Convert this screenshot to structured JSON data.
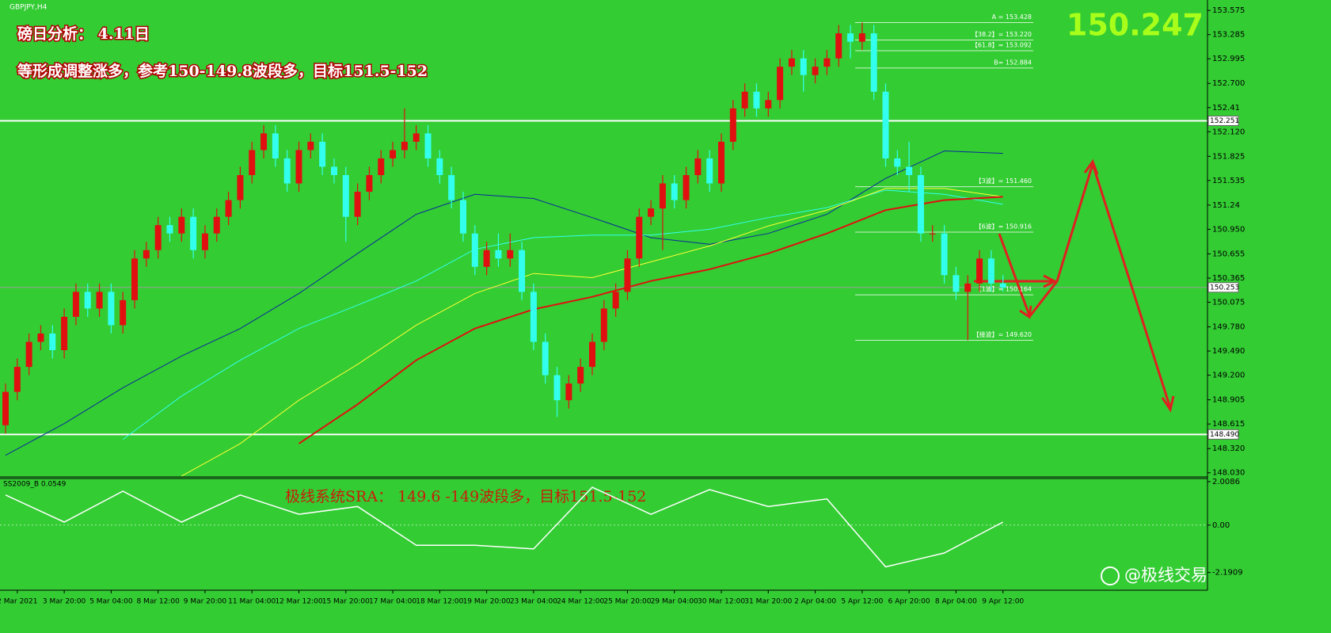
{
  "chart_data": {
    "type": "candlestick",
    "symbol": "GBPJPY,H4",
    "title": "磅日分析：  4.11日",
    "subtitle": "等形成调整涨多，参考150-149.8波段多，目标151.5-152",
    "price": "150.247",
    "indicator_label": "SS2009_B 0.0549",
    "indicator_note": "极线系统SRA：  149.6 -149波段多，目标151.5-152",
    "watermark": "@极线交易",
    "up_color": "#e01010",
    "down_color": "#33ffee",
    "categories": [
      null,
      "2 Mar 2021",
      null,
      null,
      null,
      "3 Mar 20:00",
      null,
      null,
      null,
      "5 Mar 04:00",
      null,
      null,
      null,
      "8 Mar 12:00",
      null,
      null,
      null,
      "9 Mar 20:00",
      null,
      null,
      null,
      "11 Mar 04:00",
      null,
      null,
      null,
      "12 Mar 12:00",
      null,
      null,
      null,
      "15 Mar 20:00",
      null,
      null,
      null,
      "17 Mar 04:00",
      null,
      null,
      null,
      "18 Mar 12:00",
      null,
      null,
      null,
      "19 Mar 20:00",
      null,
      null,
      null,
      "23 Mar 04:00",
      null,
      null,
      null,
      "24 Mar 12:00",
      null,
      null,
      null,
      "25 Mar 20:00",
      null,
      null,
      null,
      "29 Mar 04:00",
      null,
      null,
      null,
      "30 Mar 12:00",
      null,
      null,
      null,
      "31 Mar 20:00",
      null,
      null,
      null,
      "2 Apr 04:00",
      null,
      null,
      null,
      "5 Apr 12:00",
      null,
      null,
      null,
      "6 Apr 20:00",
      null,
      null,
      null,
      "8 Apr 04:00",
      null,
      null,
      null,
      "9 Apr 12:00"
    ],
    "open": [
      148.6,
      149.0,
      149.3,
      149.6,
      149.7,
      149.5,
      149.9,
      150.2,
      150.0,
      150.2,
      149.8,
      150.1,
      150.6,
      150.7,
      151.0,
      150.9,
      151.1,
      150.7,
      150.9,
      151.1,
      151.3,
      151.6,
      151.9,
      152.1,
      151.8,
      151.5,
      151.9,
      152.0,
      151.7,
      151.6,
      151.1,
      151.4,
      151.6,
      151.8,
      151.9,
      152.0,
      152.1,
      151.8,
      151.6,
      151.3,
      150.9,
      150.5,
      150.7,
      150.6,
      150.7,
      150.2,
      149.6,
      149.2,
      148.9,
      149.1,
      149.3,
      149.6,
      150.0,
      150.2,
      150.6,
      151.1,
      151.2,
      151.5,
      151.3,
      151.6,
      151.8,
      151.5,
      152.0,
      152.4,
      152.6,
      152.4,
      152.5,
      152.9,
      153.0,
      152.8,
      152.9,
      153.0,
      153.3,
      153.2,
      153.3,
      152.6,
      151.8,
      151.7,
      151.6,
      150.9,
      150.9,
      150.4,
      150.2,
      150.3,
      150.6,
      150.3
    ],
    "high": [
      149.1,
      149.4,
      149.7,
      149.8,
      149.8,
      150.0,
      150.3,
      150.3,
      150.3,
      150.3,
      150.2,
      150.7,
      150.8,
      151.1,
      151.1,
      151.2,
      151.2,
      151.0,
      151.2,
      151.4,
      151.7,
      152.0,
      152.2,
      152.2,
      151.9,
      152.0,
      152.1,
      152.1,
      151.8,
      151.7,
      151.5,
      151.7,
      151.9,
      152.0,
      152.4,
      152.2,
      152.2,
      151.9,
      151.7,
      151.4,
      151.0,
      150.8,
      150.9,
      150.9,
      150.8,
      150.3,
      149.7,
      149.3,
      149.2,
      149.4,
      149.7,
      150.1,
      150.3,
      150.7,
      151.2,
      151.3,
      151.6,
      151.6,
      151.7,
      151.9,
      151.9,
      152.1,
      152.5,
      152.7,
      152.7,
      152.6,
      153.0,
      153.1,
      153.1,
      153.0,
      153.1,
      153.4,
      153.4,
      153.43,
      153.4,
      152.7,
      151.9,
      152.0,
      151.7,
      151.0,
      151.0,
      150.5,
      150.4,
      150.7,
      150.7,
      150.4
    ],
    "low": [
      148.5,
      148.9,
      149.2,
      149.5,
      149.4,
      149.4,
      149.8,
      149.9,
      149.9,
      149.7,
      149.7,
      150.0,
      150.5,
      150.6,
      150.8,
      150.8,
      150.6,
      150.6,
      150.8,
      151.0,
      151.2,
      151.5,
      151.8,
      151.7,
      151.4,
      151.4,
      151.8,
      151.6,
      151.5,
      150.8,
      151.0,
      151.3,
      151.5,
      151.7,
      151.8,
      151.9,
      151.7,
      151.5,
      151.2,
      150.8,
      150.4,
      150.4,
      150.5,
      150.5,
      150.1,
      149.5,
      149.1,
      148.7,
      148.8,
      149.0,
      149.2,
      149.5,
      149.9,
      150.1,
      150.5,
      151.0,
      150.7,
      151.2,
      151.2,
      151.5,
      151.4,
      151.4,
      151.9,
      152.3,
      152.3,
      152.3,
      152.4,
      152.8,
      152.6,
      152.7,
      152.8,
      152.9,
      153.0,
      153.1,
      152.5,
      151.7,
      151.6,
      151.4,
      150.8,
      150.8,
      150.3,
      150.1,
      149.62,
      150.2,
      150.2,
      150.2
    ],
    "close": [
      149.0,
      149.3,
      149.6,
      149.7,
      149.5,
      149.9,
      150.2,
      150.0,
      150.2,
      149.8,
      150.1,
      150.6,
      150.7,
      151.0,
      150.9,
      151.1,
      150.7,
      150.9,
      151.1,
      151.3,
      151.6,
      151.9,
      152.1,
      151.8,
      151.5,
      151.9,
      152.0,
      151.7,
      151.6,
      151.1,
      151.4,
      151.6,
      151.8,
      151.9,
      152.0,
      152.1,
      151.8,
      151.6,
      151.3,
      150.9,
      150.5,
      150.7,
      150.6,
      150.7,
      150.2,
      149.6,
      149.2,
      148.9,
      149.1,
      149.3,
      149.6,
      150.0,
      150.2,
      150.6,
      151.1,
      151.2,
      151.5,
      151.3,
      151.6,
      151.8,
      151.5,
      152.0,
      152.4,
      152.6,
      152.4,
      152.5,
      152.9,
      153.0,
      152.8,
      152.9,
      153.0,
      153.3,
      153.2,
      153.3,
      152.6,
      151.8,
      151.7,
      151.6,
      150.9,
      150.9,
      150.4,
      150.2,
      150.3,
      150.6,
      150.3,
      150.25
    ],
    "line_x": [
      0,
      5,
      10,
      15,
      20,
      25,
      30,
      35,
      40,
      45,
      50,
      55,
      60,
      65,
      70,
      75,
      80,
      85
    ],
    "lines": [
      {
        "color": "#0a2a9a",
        "values": [
          148.24,
          148.62,
          149.05,
          149.43,
          149.76,
          150.18,
          150.66,
          151.13,
          151.37,
          151.32,
          151.09,
          150.85,
          150.77,
          150.9,
          151.13,
          151.56,
          151.89,
          151.86
        ]
      },
      {
        "color": "#33ffee",
        "values": [
          null,
          null,
          148.43,
          148.95,
          149.38,
          149.76,
          150.04,
          150.33,
          150.71,
          150.85,
          150.88,
          150.88,
          150.95,
          151.09,
          151.21,
          151.42,
          151.37,
          151.25
        ]
      },
      {
        "color": "#ffff33",
        "values": [
          null,
          null,
          null,
          147.99,
          148.38,
          148.9,
          149.33,
          149.8,
          150.18,
          150.42,
          150.37,
          150.56,
          150.75,
          150.99,
          151.18,
          151.44,
          151.44,
          151.34
        ]
      },
      {
        "color": "#e01010",
        "values": [
          null,
          null,
          null,
          null,
          null,
          148.38,
          148.85,
          149.38,
          149.76,
          149.99,
          150.14,
          150.33,
          150.47,
          150.66,
          150.9,
          151.18,
          151.3,
          151.34
        ]
      }
    ],
    "ylim": [
      147.98,
      153.7
    ],
    "yticks": [
      153.575,
      153.285,
      152.995,
      {
        "value": 152.7,
        "label": "152.700"
      },
      152.41,
      {
        "value": 152.12,
        "label": "152.120"
      },
      151.825,
      151.535,
      151.24,
      {
        "value": 150.95,
        "label": "150.950"
      },
      150.655,
      150.365,
      150.075,
      {
        "value": 149.78,
        "label": "149.780"
      },
      {
        "value": 149.49,
        "label": "149.490"
      },
      {
        "value": 149.2,
        "label": "149.200"
      },
      148.905,
      148.615,
      {
        "value": 148.32,
        "label": "148.320"
      },
      {
        "value": 148.03,
        "label": "148.030"
      }
    ],
    "hlines": [
      {
        "value": 152.251,
        "color": "#ffffff"
      },
      {
        "value": 148.49,
        "color": "#ffffff",
        "label": "148.490"
      },
      {
        "value": 150.253,
        "color": "#9aa09a"
      }
    ],
    "levels": [
      {
        "label": "A = 153.428",
        "value": 153.428
      },
      {
        "label": "【38.2】= 153.220",
        "value": 153.22
      },
      {
        "label": "【61.8】= 153.092",
        "value": 153.092
      },
      {
        "label": "B= 152.884",
        "value": 152.884
      },
      {
        "label": "【3波】= 151.460",
        "value": 151.46
      },
      {
        "label": "【6波】= 150.916",
        "value": 150.916
      },
      {
        "label": "【1波】= 150.164",
        "value": 150.164
      },
      {
        "label": "【接波】= 149.620",
        "value": 149.62
      }
    ],
    "oscillator": {
      "color": "#ffffff",
      "values": [
        1.39,
        0.14,
        1.57,
        0.14,
        1.39,
        0.5,
        0.86,
        -0.93,
        -0.93,
        -1.1,
        1.75,
        0.5,
        1.64,
        0.86,
        1.21,
        -1.93,
        -1.29,
        0.14
      ],
      "ylim": [
        -3.01,
        2.19
      ],
      "yticks": [
        2.0086,
        {
          "value": 0,
          "label": "0.00"
        },
        -2.1909
      ]
    }
  }
}
